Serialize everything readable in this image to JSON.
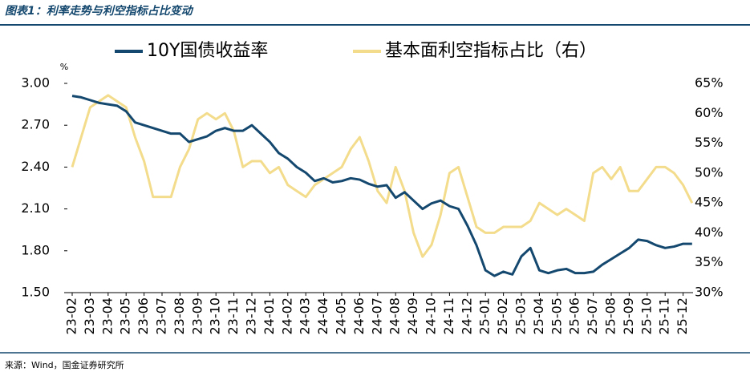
{
  "title": "图表1：利率走势与利空指标占比变动",
  "source": "来源：Wind，国金证券研究所",
  "chart_data": {
    "type": "line",
    "y_unit": "%",
    "categories": [
      "23-02",
      null,
      "23-03",
      null,
      "23-04",
      null,
      "23-05",
      null,
      "23-06",
      null,
      "23-07",
      null,
      "23-08",
      null,
      "23-09",
      null,
      "23-10",
      null,
      "23-11",
      null,
      "23-12",
      null,
      "24-01",
      null,
      "24-02",
      null,
      "24-03",
      null,
      "24-04",
      null,
      "24-05",
      null,
      "24-06",
      null,
      "24-07",
      null,
      "24-08",
      null,
      "24-09",
      null,
      "24-10",
      null,
      "24-11",
      null,
      "24-12",
      null,
      "25-01",
      null,
      "25-02",
      null,
      "25-03",
      null,
      "25-04",
      null,
      "25-05",
      null,
      "25-06",
      null,
      "25-07",
      null,
      "25-08",
      null,
      "25-09",
      null,
      "25-10",
      null,
      "25-11",
      null,
      "25-12",
      null
    ],
    "series": [
      {
        "name": "10Y国债收益率",
        "color": "#14486e",
        "values": [
          2.91,
          2.9,
          2.88,
          2.86,
          2.85,
          2.84,
          2.8,
          2.72,
          2.7,
          2.68,
          2.66,
          2.64,
          2.64,
          2.58,
          2.6,
          2.62,
          2.66,
          2.68,
          2.66,
          2.66,
          2.7,
          2.64,
          2.58,
          2.5,
          2.46,
          2.4,
          2.36,
          2.3,
          2.32,
          2.29,
          2.3,
          2.32,
          2.31,
          2.28,
          2.26,
          2.27,
          2.18,
          2.22,
          2.16,
          2.1,
          2.14,
          2.16,
          2.12,
          2.1,
          1.98,
          1.84,
          1.66,
          1.62,
          1.65,
          1.63,
          1.76,
          1.82,
          1.66,
          1.64,
          1.66,
          1.67,
          1.64,
          1.64,
          1.65,
          1.7,
          1.74,
          1.78,
          1.82,
          1.88,
          1.87,
          1.84,
          1.82,
          1.83,
          1.85,
          1.85
        ]
      },
      {
        "name": "基本面利空指标占比（右）",
        "color": "#f3dc8c",
        "axis": "y2",
        "values": [
          51,
          56,
          61,
          62,
          63,
          62,
          61,
          56,
          52,
          46,
          46,
          46,
          51,
          54,
          59,
          60,
          59,
          60,
          57,
          51,
          52,
          52,
          50,
          51,
          48,
          47,
          46,
          48,
          49,
          50,
          51,
          54,
          56,
          52,
          47,
          45,
          51,
          47,
          40,
          36,
          38,
          43,
          50,
          51,
          46,
          41,
          40,
          40,
          41,
          41,
          41,
          42,
          45,
          44,
          43,
          44,
          43,
          42,
          50,
          51,
          49,
          51,
          47,
          47,
          49,
          51,
          51,
          50,
          48,
          45
        ]
      }
    ],
    "ylim": [
      1.5,
      3.0
    ],
    "yticks": [
      {
        "value": 1.5,
        "label": "1.50"
      },
      {
        "value": 1.8,
        "label": "1.80"
      },
      {
        "value": 2.1,
        "label": "2.10"
      },
      {
        "value": 2.4,
        "label": "2.40"
      },
      {
        "value": 2.7,
        "label": "2.70"
      },
      {
        "value": 3.0,
        "label": "3.00"
      }
    ],
    "y2lim": [
      30,
      65
    ],
    "y2ticks": [
      {
        "value": 30,
        "label": "30%"
      },
      {
        "value": 35,
        "label": "35%"
      },
      {
        "value": 40,
        "label": "40%"
      },
      {
        "value": 45,
        "label": "45%"
      },
      {
        "value": 50,
        "label": "50%"
      },
      {
        "value": 55,
        "label": "55%"
      },
      {
        "value": 60,
        "label": "60%"
      },
      {
        "value": 65,
        "label": "65%"
      }
    ]
  }
}
